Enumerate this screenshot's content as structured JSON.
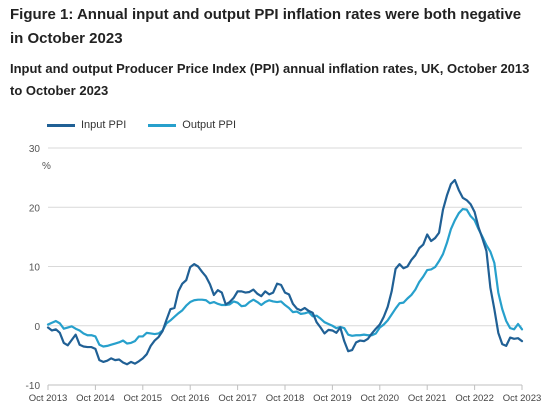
{
  "title": "Figure 1: Annual input and output PPI inflation rates were both negative in October 2023",
  "subtitle": "Input and output Producer Price Index (PPI) annual inflation rates, UK, October 2013 to October 2023",
  "legend": {
    "input_label": "Input PPI",
    "output_label": "Output PPI",
    "input_color": "#206095",
    "output_color": "#27a0cc"
  },
  "chart_data": {
    "type": "line",
    "ylabel": "%",
    "ylim": [
      -10,
      30
    ],
    "yticks": [
      -10,
      0,
      10,
      20,
      30
    ],
    "xlim_months": [
      0,
      120
    ],
    "xticks": [
      {
        "month": 0,
        "label": "Oct 2013"
      },
      {
        "month": 12,
        "label": "Oct 2014"
      },
      {
        "month": 24,
        "label": "Oct 2015"
      },
      {
        "month": 36,
        "label": "Oct 2016"
      },
      {
        "month": 48,
        "label": "Oct 2017"
      },
      {
        "month": 60,
        "label": "Oct 2018"
      },
      {
        "month": 72,
        "label": "Oct 2019"
      },
      {
        "month": 84,
        "label": "Oct 2020"
      },
      {
        "month": 96,
        "label": "Oct 2021"
      },
      {
        "month": 108,
        "label": "Oct 2022"
      },
      {
        "month": 120,
        "label": "Oct 2023"
      }
    ],
    "grid": true,
    "legend_position": "top-left",
    "series": [
      {
        "name": "Input PPI",
        "color": "#206095",
        "values": [
          -0.3,
          -0.8,
          -0.6,
          -1.2,
          -2.9,
          -3.3,
          -2.4,
          -1.5,
          -3.2,
          -3.5,
          -3.6,
          -3.6,
          -3.9,
          -5.8,
          -6.1,
          -5.9,
          -5.5,
          -5.8,
          -5.7,
          -6.2,
          -6.5,
          -6.1,
          -6.4,
          -6.0,
          -5.5,
          -4.8,
          -3.4,
          -2.5,
          -1.9,
          -0.9,
          1.0,
          2.8,
          3.0,
          5.8,
          7.1,
          7.7,
          9.9,
          10.4,
          10.0,
          9.1,
          8.3,
          7.0,
          5.2,
          6.0,
          5.6,
          3.6,
          4.0,
          4.7,
          5.8,
          5.8,
          5.6,
          5.7,
          6.1,
          5.4,
          5.0,
          5.8,
          5.3,
          5.6,
          7.1,
          6.9,
          5.6,
          5.3,
          3.7,
          2.9,
          2.6,
          3.0,
          2.5,
          2.2,
          0.6,
          -0.3,
          -1.3,
          -0.7,
          -0.8,
          -1.2,
          -0.3,
          -2.6,
          -4.3,
          -4.1,
          -2.8,
          -2.5,
          -2.6,
          -2.2,
          -1.3,
          -0.5,
          0.2,
          1.5,
          3.2,
          5.8,
          9.6,
          10.4,
          9.7,
          10.0,
          11.1,
          11.9,
          13.1,
          13.7,
          15.4,
          14.3,
          14.8,
          15.7,
          19.6,
          22.0,
          23.9,
          24.6,
          22.9,
          21.6,
          21.2,
          20.5,
          19.2,
          16.6,
          14.7,
          12.6,
          6.4,
          2.8,
          -1.2,
          -3.1,
          -3.4,
          -2.0,
          -2.2,
          -2.1,
          -2.6
        ]
      },
      {
        "name": "Output PPI",
        "color": "#27a0cc",
        "values": [
          0.2,
          0.5,
          0.8,
          0.4,
          -0.5,
          -0.3,
          -0.1,
          -0.5,
          -0.8,
          -1.3,
          -1.6,
          -1.6,
          -1.8,
          -3.2,
          -3.5,
          -3.4,
          -3.2,
          -3.0,
          -2.8,
          -2.5,
          -3.0,
          -2.9,
          -2.6,
          -1.8,
          -1.8,
          -1.2,
          -1.3,
          -1.4,
          -1.3,
          -0.8,
          0.4,
          0.9,
          1.5,
          2.1,
          2.6,
          3.4,
          4.0,
          4.3,
          4.4,
          4.4,
          4.3,
          3.8,
          4.0,
          3.7,
          3.5,
          3.5,
          3.6,
          4.1,
          3.9,
          3.3,
          3.4,
          4.0,
          4.4,
          4.0,
          3.5,
          4.0,
          4.3,
          4.1,
          4.0,
          4.1,
          3.5,
          3.0,
          2.3,
          2.4,
          2.0,
          2.1,
          2.3,
          1.6,
          1.7,
          1.2,
          0.6,
          0.3,
          0.0,
          -0.4,
          -0.2,
          -0.4,
          -1.5,
          -1.7,
          -1.6,
          -1.6,
          -1.5,
          -1.6,
          -1.6,
          -1.3,
          -0.3,
          0.2,
          0.9,
          1.9,
          2.9,
          3.8,
          3.9,
          4.6,
          5.2,
          6.1,
          7.4,
          8.3,
          9.4,
          9.5,
          9.9,
          10.9,
          12.1,
          14.0,
          16.3,
          17.8,
          19.0,
          19.7,
          19.6,
          18.5,
          17.8,
          16.3,
          15.0,
          13.6,
          12.5,
          10.6,
          5.6,
          2.8,
          0.8,
          -0.4,
          -0.6,
          0.3,
          -0.6
        ]
      }
    ]
  }
}
